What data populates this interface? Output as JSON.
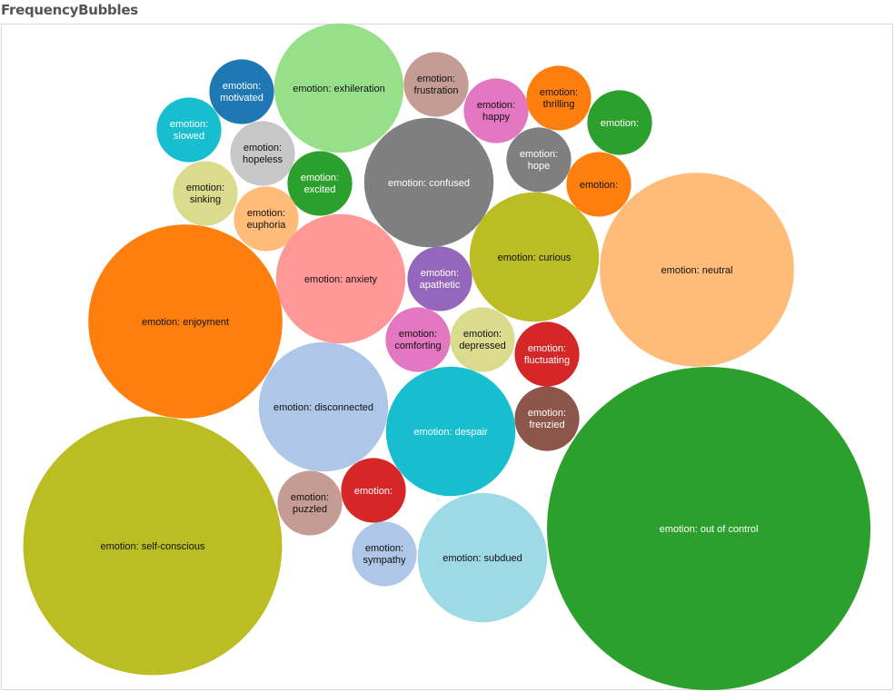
{
  "title": "FrequencyBubbles",
  "chart_data": {
    "type": "bubble",
    "title": "FrequencyBubbles",
    "bubbles": [
      {
        "label": "emotion: exhileration",
        "value": 4,
        "color": "#98df8a"
      },
      {
        "label": "emotion: motivated",
        "value": 1,
        "color": "#1f77b4"
      },
      {
        "label": "emotion: slowed",
        "value": 1,
        "color": "#17becf"
      },
      {
        "label": "emotion: frustration",
        "value": 1,
        "color": "#c49c94"
      },
      {
        "label": "emotion: happy",
        "value": 1,
        "color": "#e377c2"
      },
      {
        "label": "emotion: thrilling",
        "value": 1,
        "color": "#ff7f0e"
      },
      {
        "label": "emotion:",
        "value": 1,
        "color": "#2ca02c"
      },
      {
        "label": "emotion: hopeless",
        "value": 1,
        "color": "#c7c7c7"
      },
      {
        "label": "emotion: excited",
        "value": 1,
        "color": "#2ca02c"
      },
      {
        "label": "emotion: confused",
        "value": 4,
        "color": "#7f7f7f"
      },
      {
        "label": "emotion: hope",
        "value": 1,
        "color": "#7f7f7f"
      },
      {
        "label": "emotion:",
        "value": 1,
        "color": "#ff7f0e"
      },
      {
        "label": "emotion: sinking",
        "value": 1,
        "color": "#dbdb8d"
      },
      {
        "label": "emotion: euphoria",
        "value": 1,
        "color": "#ffbb78"
      },
      {
        "label": "emotion: neutral",
        "value": 9,
        "color": "#ffbb78"
      },
      {
        "label": "emotion: anxiety",
        "value": 4,
        "color": "#ff9896"
      },
      {
        "label": "emotion: curious",
        "value": 4,
        "color": "#bcbd22"
      },
      {
        "label": "emotion: apathetic",
        "value": 1,
        "color": "#9467bd"
      },
      {
        "label": "emotion: enjoyment",
        "value": 9,
        "color": "#ff7f0e"
      },
      {
        "label": "emotion: comforting",
        "value": 1,
        "color": "#e377c2"
      },
      {
        "label": "emotion: depressed",
        "value": 1,
        "color": "#dbdb8d"
      },
      {
        "label": "emotion: fluctuating",
        "value": 1,
        "color": "#d62728"
      },
      {
        "label": "emotion: disconnected",
        "value": 4,
        "color": "#aec7e8"
      },
      {
        "label": "emotion: despair",
        "value": 4,
        "color": "#17becf"
      },
      {
        "label": "emotion: frenzied",
        "value": 1,
        "color": "#8c564b"
      },
      {
        "label": "emotion: out of control",
        "value": 25,
        "color": "#2ca02c"
      },
      {
        "label": "emotion: self-conscious",
        "value": 16,
        "color": "#bcbd22"
      },
      {
        "label": "emotion: puzzled",
        "value": 1,
        "color": "#c49c94"
      },
      {
        "label": "emotion:",
        "value": 1,
        "color": "#d62728"
      },
      {
        "label": "emotion: sympathy",
        "value": 1,
        "color": "#aec7e8"
      },
      {
        "label": "emotion: subdued",
        "value": 4,
        "color": "#9edae5"
      }
    ]
  }
}
